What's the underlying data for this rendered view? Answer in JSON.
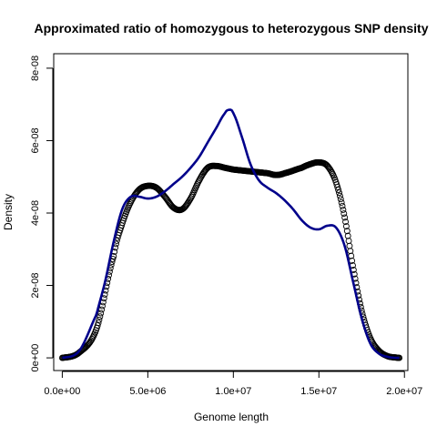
{
  "chart_data": {
    "type": "line",
    "title": "Approximated ratio of homozygous to heterozygous SNP density",
    "xlabel": "Genome length",
    "ylabel": "Density",
    "xlim": [
      -500000,
      20200000
    ],
    "ylim": [
      -3.5e-09,
      8.4e-08
    ],
    "x_ticks": [
      {
        "value": 0,
        "label": "0.0e+00"
      },
      {
        "value": 5000000,
        "label": "5.0e+06"
      },
      {
        "value": 10000000,
        "label": "1.0e+07"
      },
      {
        "value": 15000000,
        "label": "1.5e+07"
      },
      {
        "value": 20000000,
        "label": "2.0e+07"
      }
    ],
    "y_ticks": [
      {
        "value": 0,
        "label": "0e+00"
      },
      {
        "value": 2e-08,
        "label": "2e-08"
      },
      {
        "value": 4e-08,
        "label": "4e-08"
      },
      {
        "value": 6e-08,
        "label": "6e-08"
      },
      {
        "value": 8e-08,
        "label": "8e-08"
      }
    ],
    "grid": false,
    "legend": "none",
    "series": [
      {
        "style": "points",
        "color": "#000000",
        "x": [
          0,
          1000000,
          2000000,
          3000000,
          3500000,
          4000000,
          4500000,
          5000000,
          5500000,
          6000000,
          6500000,
          7000000,
          7500000,
          8000000,
          8500000,
          9000000,
          9500000,
          10000000,
          11000000,
          12000000,
          12500000,
          13000000,
          14000000,
          14500000,
          15000000,
          15500000,
          16000000,
          16500000,
          17000000,
          17500000,
          18000000,
          18500000,
          19000000,
          19500000,
          19700000
        ],
        "y": [
          0.0,
          1.5e-09,
          8e-09,
          2.8e-08,
          3.7e-08,
          4.3e-08,
          4.65e-08,
          4.75e-08,
          4.7e-08,
          4.45e-08,
          4.15e-08,
          4.1e-08,
          4.4e-08,
          4.9e-08,
          5.25e-08,
          5.3e-08,
          5.25e-08,
          5.2e-08,
          5.15e-08,
          5.1e-08,
          5.05e-08,
          5.1e-08,
          5.25e-08,
          5.35e-08,
          5.4e-08,
          5.3e-08,
          4.85e-08,
          3.9e-08,
          2.5e-08,
          1.3e-08,
          5.5e-09,
          2e-09,
          5e-10,
          1e-10,
          0.0
        ]
      },
      {
        "style": "line",
        "color": "#00008b",
        "x": [
          0,
          1000000,
          2000000,
          2500000,
          3000000,
          3500000,
          4000000,
          4500000,
          5000000,
          5500000,
          6000000,
          6500000,
          7000000,
          7500000,
          8000000,
          8500000,
          9000000,
          9500000,
          9750000,
          10000000,
          10500000,
          11000000,
          11500000,
          12000000,
          12500000,
          13000000,
          13500000,
          14000000,
          14500000,
          15000000,
          15500000,
          16000000,
          16500000,
          17000000,
          17500000,
          18000000,
          18500000,
          19000000,
          19500000,
          19700000
        ],
        "y": [
          0.0,
          2e-09,
          1.2e-08,
          2.1e-08,
          3.2e-08,
          4.1e-08,
          4.45e-08,
          4.45e-08,
          4.4e-08,
          4.45e-08,
          4.6e-08,
          4.8e-08,
          5e-08,
          5.25e-08,
          5.55e-08,
          5.95e-08,
          6.35e-08,
          6.75e-08,
          6.85e-08,
          6.75e-08,
          6.1e-08,
          5.35e-08,
          4.9e-08,
          4.7e-08,
          4.55e-08,
          4.35e-08,
          4.1e-08,
          3.8e-08,
          3.6e-08,
          3.55e-08,
          3.65e-08,
          3.6e-08,
          3.1e-08,
          2.1e-08,
          1.1e-08,
          4e-09,
          1.2e-09,
          3e-10,
          0.0,
          0.0
        ]
      }
    ]
  }
}
